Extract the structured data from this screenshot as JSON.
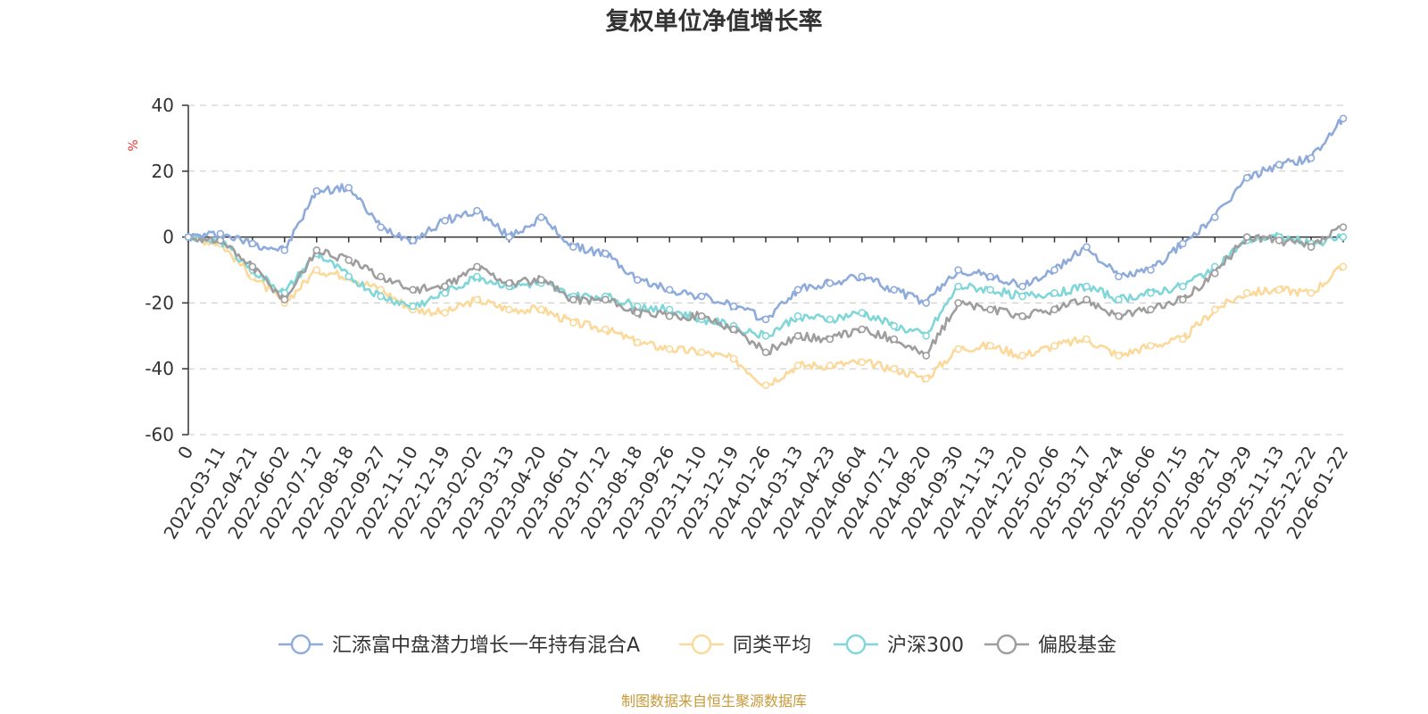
{
  "chart_data": {
    "type": "line",
    "title": "复权单位净值增长率",
    "ylabel": "%",
    "ylim": [
      -60,
      40
    ],
    "yticks": [
      "40",
      "20",
      "0",
      "-20",
      "-40",
      "-60"
    ],
    "grid": true,
    "legend_position": "bottom",
    "source": "制图数据来自恒生聚源数据库",
    "categories": [
      "0",
      "2022-03-11",
      "2022-04-21",
      "2022-06-02",
      "2022-07-12",
      "2022-08-18",
      "2022-09-27",
      "2022-11-10",
      "2022-12-19",
      "2023-02-02",
      "2023-03-13",
      "2023-04-20",
      "2023-06-01",
      "2023-07-12",
      "2023-08-18",
      "2023-09-26",
      "2023-11-10",
      "2023-12-19",
      "2024-01-26",
      "2024-03-13",
      "2024-04-23",
      "2024-06-04",
      "2024-07-12",
      "2024-08-20",
      "2024-09-30",
      "2024-11-13",
      "2024-12-20",
      "2025-02-06",
      "2025-03-17",
      "2025-04-24",
      "2025-06-06",
      "2025-07-15",
      "2025-08-21",
      "2025-09-29",
      "2025-11-13",
      "2025-12-22",
      "2026-01-22"
    ],
    "series": [
      {
        "name": "汇添富中盘潜力增长一年持有混合A",
        "color": "#8fabdb",
        "values": [
          0,
          1,
          -2,
          -4,
          14,
          15,
          3,
          -1,
          5,
          8,
          0,
          6,
          -3,
          -5,
          -13,
          -16,
          -18,
          -21,
          -25,
          -16,
          -14,
          -12,
          -16,
          -20,
          -10,
          -12,
          -15,
          -10,
          -3,
          -12,
          -10,
          -2,
          6,
          18,
          22,
          24,
          36
        ]
      },
      {
        "name": "同类平均",
        "color": "#fbd99a",
        "values": [
          0,
          -2,
          -12,
          -20,
          -10,
          -12,
          -16,
          -22,
          -23,
          -19,
          -22,
          -22,
          -26,
          -28,
          -32,
          -34,
          -35,
          -37,
          -45,
          -39,
          -39,
          -38,
          -40,
          -43,
          -34,
          -33,
          -36,
          -33,
          -31,
          -36,
          -33,
          -31,
          -22,
          -17,
          -16,
          -17,
          -9
        ]
      },
      {
        "name": "沪深300",
        "color": "#80d6d8",
        "values": [
          0,
          -1,
          -10,
          -17,
          -5,
          -12,
          -18,
          -21,
          -17,
          -12,
          -15,
          -14,
          -18,
          -18,
          -21,
          -22,
          -25,
          -27,
          -30,
          -24,
          -25,
          -23,
          -27,
          -30,
          -15,
          -16,
          -18,
          -17,
          -15,
          -19,
          -17,
          -15,
          -9,
          -1,
          0,
          -2,
          0
        ]
      },
      {
        "name": "偏股基金",
        "color": "#9e9e9e",
        "values": [
          0,
          -1,
          -9,
          -19,
          -4,
          -7,
          -12,
          -16,
          -15,
          -9,
          -14,
          -13,
          -19,
          -19,
          -23,
          -24,
          -24,
          -28,
          -35,
          -30,
          -31,
          -28,
          -31,
          -36,
          -20,
          -22,
          -24,
          -22,
          -19,
          -24,
          -22,
          -19,
          -11,
          0,
          -1,
          -3,
          3
        ]
      }
    ]
  }
}
